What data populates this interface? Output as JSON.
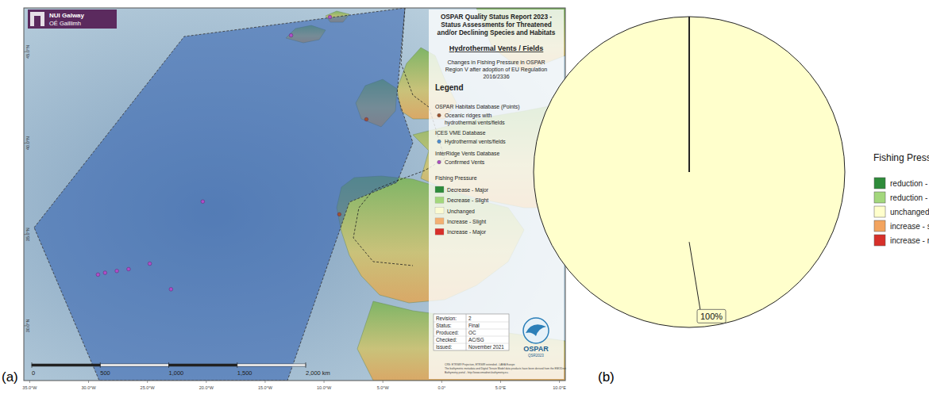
{
  "panel_labels": [
    "(a)",
    "(b)"
  ],
  "map": {
    "logo": {
      "line1": "NUI Galway",
      "line2": "OÉ Gaillimh"
    },
    "title_lines": [
      "OSPAR Quality Status Report 2023 -",
      "Status Assessments for Threatened",
      "and/or Declining Species and Habitats"
    ],
    "subtitle": "Hydrothermal Vents / Fields",
    "description_lines": [
      "Changes in Fishing Pressure in OSPAR",
      "Region V after adoption of EU Regulation",
      "2016/2336"
    ],
    "legend": {
      "title": "Legend",
      "groups": [
        {
          "heading": "OSPAR Habitats Database (Points)",
          "label_lines": [
            "Oceanic ridges with",
            "hydrothermal vents/fields"
          ],
          "color": "#a0522d",
          "points": [
            {
              "lon": -8.7,
              "lat": 36.1
            },
            {
              "lon": -6.4,
              "lat": 41.3
            }
          ]
        },
        {
          "heading": "ICES VME Database",
          "label_lines": [
            "Hydrothermal vents/fields"
          ],
          "color": "#4a90d9",
          "points": []
        },
        {
          "heading": "InterRidge Vents Database",
          "label_lines": [
            "Confirmed Vents"
          ],
          "color": "#b04ec8",
          "points": [
            {
              "lon": -29.2,
              "lat": 32.8
            },
            {
              "lon": -28.6,
              "lat": 32.9
            },
            {
              "lon": -27.6,
              "lat": 33.0
            },
            {
              "lon": -26.6,
              "lat": 33.1
            },
            {
              "lon": -24.8,
              "lat": 33.4
            },
            {
              "lon": -23.0,
              "lat": 32.0
            },
            {
              "lon": -20.3,
              "lat": 36.8
            },
            {
              "lon": -12.8,
              "lat": 45.9
            },
            {
              "lon": -9.5,
              "lat": 46.9
            }
          ]
        }
      ],
      "fishing_title": "Fishing Pressure",
      "fishing_classes": [
        {
          "label": "Decrease - Major",
          "color": "#2e8b3a"
        },
        {
          "label": "Decrease - Slight",
          "color": "#a3d77c"
        },
        {
          "label": "Unchanged",
          "color": "#fbfbd2"
        },
        {
          "label": "Increase - Slight",
          "color": "#f3b072"
        },
        {
          "label": "Increase - Major",
          "color": "#d7302a"
        }
      ]
    },
    "info": [
      {
        "key": "Revision:",
        "value": 2
      },
      {
        "key": "Status:",
        "value": "Final"
      },
      {
        "key": "Produced:",
        "value": "OC"
      },
      {
        "key": "Checked:",
        "value": "AC/SG"
      },
      {
        "key": "Issued:",
        "value": "November 2021"
      }
    ],
    "ospar_logo": {
      "text": "OSPAR",
      "sub": "QSR2023"
    },
    "crs_lines": [
      "CRS: ETRS89 Projection, ETRS89 extended - LAEA Europe",
      "The bathymetric metadata and Digital Terrain Model data products have been derived from the EMODnet",
      "Bathymetry portal - http://www.emodnet-bathymetry.eu."
    ],
    "scale_bar": {
      "ticks": [
        0,
        500,
        {
          "value": 1000,
          "label": "1,000"
        },
        {
          "value": 1500,
          "label": "1,500"
        },
        {
          "value": 2000,
          "label": "2,000 km"
        }
      ]
    },
    "lon_range": [
      -35.5,
      10.5
    ],
    "lat_range": [
      27,
      47.4
    ],
    "lon_ticks": [
      {
        "value": -35,
        "label": "35.0°W"
      },
      {
        "value": -30,
        "label": "30.0°W"
      },
      {
        "value": -25,
        "label": "25.0°W"
      },
      {
        "value": -20,
        "label": "20.0°W"
      },
      {
        "value": -15,
        "label": "15.0°W"
      },
      {
        "value": -10,
        "label": "10.0°W"
      },
      {
        "value": -5,
        "label": "5.0°W"
      },
      {
        "value": 0,
        "label": "0.0°"
      },
      {
        "value": 5,
        "label": "5.0°E"
      },
      {
        "value": 10,
        "label": "10.0°E"
      }
    ],
    "lat_ticks": [
      {
        "value": 45,
        "label": "45.0°N"
      },
      {
        "value": 40,
        "label": "40.0°N"
      },
      {
        "value": 35,
        "label": "35.0°N"
      },
      {
        "value": 30,
        "label": "30.0°N"
      }
    ]
  },
  "chart_data": {
    "type": "pie",
    "legend_title": "Fishing Pressure",
    "categories": [
      "reduction - major",
      "reduction - slight",
      "unchanged",
      "increase - slight",
      "increase - major"
    ],
    "values": [
      0,
      0,
      100,
      0,
      0
    ],
    "value_labels": [
      null,
      null,
      "100%",
      null,
      null
    ],
    "colors": [
      "#2e8b3a",
      "#a3d77c",
      "#ffffcc",
      "#f3a45f",
      "#d7302a"
    ],
    "data_labels": true
  }
}
